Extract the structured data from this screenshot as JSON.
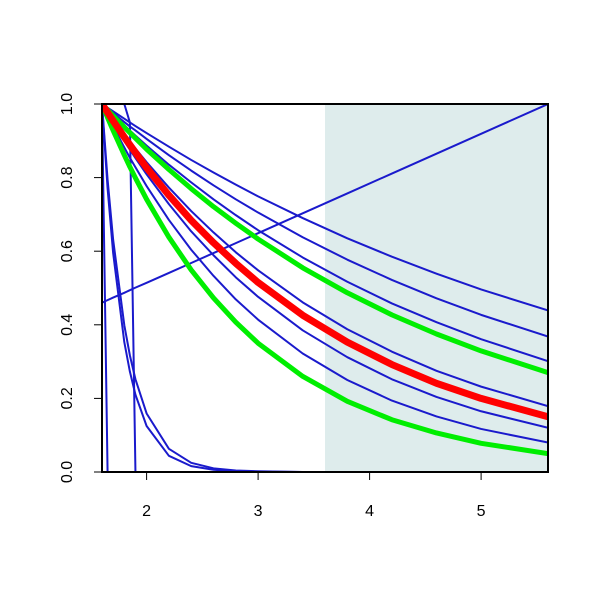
{
  "chart_data": {
    "type": "line",
    "x": [
      1.6,
      1.65,
      1.7,
      1.8,
      1.85,
      1.9,
      2.0,
      2.2,
      2.4,
      2.6,
      2.8,
      3.0,
      3.4,
      3.8,
      4.2,
      4.6,
      5.0,
      5.6
    ],
    "xlim": [
      1.6,
      5.6
    ],
    "ylim": [
      0,
      1
    ],
    "xticks": [
      2,
      3,
      4,
      5
    ],
    "yticks": [
      {
        "value": 0,
        "label": "0.0"
      },
      {
        "value": 0.2,
        "label": "0.2"
      },
      {
        "value": 0.4,
        "label": "0.4"
      },
      {
        "value": 0.6,
        "label": "0.6"
      },
      {
        "value": 0.8,
        "label": "0.8"
      },
      {
        "value": 1,
        "label": "1.0"
      }
    ],
    "shade": {
      "x": [
        3.6,
        5.6
      ],
      "color": "#deecec"
    },
    "series": [
      {
        "color": "#1a1acc",
        "width": 2,
        "values": [
          1,
          0.99,
          0.98,
          0.96,
          0.95,
          0.94,
          0.921,
          0.884,
          0.848,
          0.814,
          0.781,
          0.749,
          0.69,
          0.635,
          0.585,
          0.539,
          0.496,
          0.439
        ]
      },
      {
        "color": "#1a1acc",
        "width": 2,
        "values": [
          1,
          0.988,
          0.975,
          0.951,
          0.939,
          0.928,
          0.905,
          0.861,
          0.819,
          0.779,
          0.741,
          0.705,
          0.638,
          0.577,
          0.522,
          0.472,
          0.427,
          0.368
        ]
      },
      {
        "color": "#1a1acc",
        "width": 2,
        "values": [
          1,
          0.985,
          0.97,
          0.942,
          0.928,
          0.914,
          0.887,
          0.835,
          0.787,
          0.741,
          0.698,
          0.657,
          0.583,
          0.517,
          0.458,
          0.407,
          0.361,
          0.301
        ]
      },
      {
        "color": "#1a1acc",
        "width": 2,
        "values": [
          1,
          0.979,
          0.958,
          0.918,
          0.898,
          0.879,
          0.842,
          0.773,
          0.709,
          0.651,
          0.597,
          0.548,
          0.461,
          0.388,
          0.327,
          0.275,
          0.232,
          0.179
        ]
      },
      {
        "color": "#1a1acc",
        "width": 2,
        "values": [
          1,
          0.974,
          0.948,
          0.899,
          0.876,
          0.853,
          0.809,
          0.728,
          0.654,
          0.589,
          0.529,
          0.476,
          0.385,
          0.312,
          0.252,
          0.204,
          0.165,
          0.12
        ]
      },
      {
        "color": "#1a1acc",
        "width": 2,
        "values": [
          1,
          0.969,
          0.939,
          0.882,
          0.854,
          0.828,
          0.777,
          0.685,
          0.604,
          0.533,
          0.469,
          0.414,
          0.322,
          0.25,
          0.194,
          0.151,
          0.117,
          0.08
        ]
      },
      {
        "color": "#1a1acc",
        "width": 2,
        "values": [
          0.46,
          0.467,
          0.474,
          0.487,
          0.494,
          0.501,
          0.514,
          0.541,
          0.568,
          0.595,
          0.622,
          0.649,
          0.703,
          0.757,
          0.811,
          0.865,
          0.919,
          1.0
        ]
      },
      {
        "color": "#1a1acc",
        "width": 2,
        "values": [
          1,
          0.771,
          0.595,
          0.353,
          0.273,
          0.21,
          0.125,
          0.044,
          0.016,
          0.006,
          0.002,
          0.001,
          0,
          0,
          0,
          0,
          0,
          0
        ]
      },
      {
        "color": "#1a1acc",
        "width": 2,
        "values": [
          1,
          0.795,
          0.631,
          0.399,
          0.317,
          0.252,
          0.159,
          0.063,
          0.025,
          0.01,
          0.004,
          0.002,
          0,
          0,
          0,
          0,
          0,
          0
        ]
      },
      {
        "color": "#1a1acc",
        "width": 2,
        "values": [
          1,
          1,
          1,
          1,
          0.95,
          0,
          0,
          0,
          0,
          0,
          0,
          0,
          0,
          0,
          0,
          0,
          0,
          0
        ]
      },
      {
        "color": "#1a1acc",
        "width": 2,
        "values": [
          1,
          0,
          0,
          0,
          0,
          0,
          0,
          0,
          0,
          0,
          0,
          0,
          0,
          0,
          0,
          0,
          0,
          0
        ]
      },
      {
        "color": "#00ee00",
        "width": 5,
        "values": [
          1,
          0.984,
          0.968,
          0.937,
          0.922,
          0.907,
          0.877,
          0.822,
          0.77,
          0.721,
          0.676,
          0.633,
          0.555,
          0.487,
          0.427,
          0.375,
          0.329,
          0.27
        ]
      },
      {
        "color": "#00ee00",
        "width": 5,
        "values": [
          1,
          0.963,
          0.928,
          0.861,
          0.829,
          0.799,
          0.741,
          0.638,
          0.549,
          0.473,
          0.407,
          0.35,
          0.26,
          0.192,
          0.142,
          0.106,
          0.078,
          0.05
        ]
      },
      {
        "color": "#ff0000",
        "width": 7,
        "values": [
          1,
          0.977,
          0.954,
          0.91,
          0.889,
          0.868,
          0.827,
          0.752,
          0.684,
          0.623,
          0.567,
          0.515,
          0.426,
          0.353,
          0.292,
          0.241,
          0.2,
          0.15
        ]
      }
    ]
  }
}
